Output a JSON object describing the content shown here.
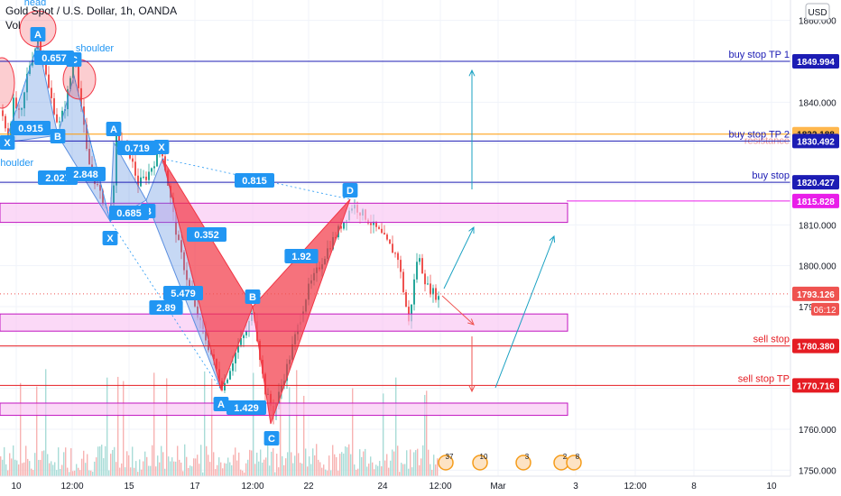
{
  "header": {
    "symbol_title": "Gold Spot / U.S. Dollar, 1h, OANDA",
    "volume_label": "Vol"
  },
  "currency_badge": "USD",
  "colors": {
    "background": "#ffffff",
    "grid": "#f0f3fa",
    "candle_up": "#26a69a",
    "candle_down": "#ef5350",
    "harmonic_blue": "#5b8fe0",
    "harmonic_red": "#f23645",
    "zone_fill": "#f9c4f3",
    "zone_border": "#c014c0",
    "blue_line": "#1c1cb4",
    "red_line": "#e51c23",
    "orange_line": "#ff9800",
    "magenta_line": "#e91ee9",
    "label_blue": "#2196f3",
    "axis_text": "#131722"
  },
  "chart_data": {
    "type": "line",
    "title": "Gold Spot / U.S. Dollar, 1h, OANDA",
    "ylim": [
      1748,
      1864
    ],
    "y_ticks": [
      1750,
      1760,
      1770,
      1780,
      1790,
      1800,
      1810,
      1820,
      1830,
      1840,
      1850,
      1860
    ],
    "y_tick_labels": [
      "1750.000",
      "1760.000",
      "1770.000",
      "1780.000",
      "1790.000",
      "1800.000",
      "1810.000",
      "1820.000",
      "1830.000",
      "1840.000",
      "1850.000",
      "1860.000"
    ],
    "x_tick_labels": [
      "10",
      "12:00",
      "15",
      "17",
      "12:00",
      "22",
      "24",
      "12:00",
      "Mar",
      "3",
      "12:00",
      "8",
      "10"
    ],
    "grid": true,
    "series": [
      {
        "name": "Gold Spot / U.S. Dollar",
        "x": [
          "10",
          "12:00",
          "15",
          "17",
          "12:00",
          "22",
          "24",
          "12:00"
        ],
        "values": [
          1836,
          1833,
          1820,
          1768,
          1765,
          1809,
          1800,
          1795
        ]
      }
    ],
    "price_levels": [
      {
        "price": 1849.994,
        "label": "1849.994",
        "line_text": "buy stop TP 1",
        "color": "#1c1cb4"
      },
      {
        "price": 1832.188,
        "label": "1832.188",
        "line_text": "resistance",
        "color": "#ff9800"
      },
      {
        "price": 1830.492,
        "label": "1830.492",
        "line_text": "buy stop TP 2",
        "color": "#1c1cb4"
      },
      {
        "price": 1820.427,
        "label": "1820.427",
        "line_text": "buy stop",
        "color": "#1c1cb4"
      },
      {
        "price": 1815.828,
        "label": "1815.828",
        "line_text": "",
        "color": "#e91ee9"
      },
      {
        "price": 1780.38,
        "label": "1780.380",
        "line_text": "sell stop",
        "color": "#e51c23"
      },
      {
        "price": 1770.716,
        "label": "1770.716",
        "line_text": "sell stop TP",
        "color": "#e51c23"
      }
    ],
    "current_price": {
      "price": 1793.126,
      "label": "1793.126",
      "countdown": "06:12"
    },
    "zones": [
      {
        "top": 1815.3,
        "bottom": 1810.6
      },
      {
        "top": 1788.2,
        "bottom": 1784.0
      },
      {
        "top": 1766.4,
        "bottom": 1763.4
      }
    ],
    "pattern_labels": {
      "head": "head",
      "shoulder_right": "shoulder",
      "shoulder_left": "shoulder",
      "point_x": "X",
      "point_a": "A",
      "point_b": "B",
      "point_c": "C",
      "point_d": "D"
    },
    "ratios": [
      "0.657",
      "0.915",
      "2.027",
      "2.848",
      "0.719",
      "0.685",
      "0.815",
      "0.352",
      "1.92",
      "5.479",
      "2.89",
      "1.429"
    ],
    "event_badges": [
      "37",
      "10",
      "3",
      "2",
      "8"
    ]
  }
}
